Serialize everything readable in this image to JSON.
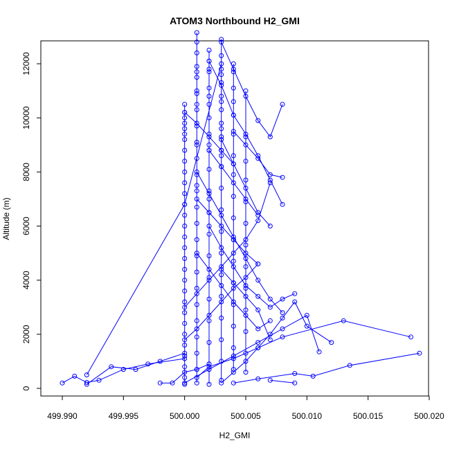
{
  "chart_data": {
    "type": "line",
    "title": "ATOM3 Northbound H2_GMI",
    "xlabel": "H2_GMI",
    "ylabel": "Altitude (m)",
    "xlim": [
      499.99,
      500.02
    ],
    "ylim": [
      0,
      13000
    ],
    "x_ticks": [
      499.99,
      499.995,
      500.0,
      500.005,
      500.01,
      500.015,
      500.02
    ],
    "x_tick_labels": [
      "499.990",
      "499.995",
      "500.000",
      "500.005",
      "500.010",
      "500.015",
      "500.020"
    ],
    "y_ticks": [
      0,
      2000,
      4000,
      6000,
      8000,
      10000,
      12000
    ],
    "y_tick_labels": [
      "0",
      "2000",
      "4000",
      "6000",
      "8000",
      "10000",
      "12000"
    ],
    "grid": false,
    "color": "#0000ff",
    "marker": "open-circle",
    "series": [
      {
        "x": [
          500.0,
          500.0,
          500.0,
          500.0,
          500.0,
          500.0,
          500.0,
          500.0,
          500.0,
          500.0,
          500.0,
          500.0,
          500.0,
          500.0,
          500.0,
          500.0,
          500.0,
          500.0,
          500.0,
          500.0,
          500.0,
          500.0,
          500.0,
          500.0,
          500.0,
          500.0,
          500.0,
          500.0,
          500.0,
          500.0
        ],
        "y": [
          150,
          400,
          800,
          1200,
          1600,
          2000,
          2400,
          2800,
          3200,
          3600,
          4000,
          4400,
          4800,
          5200,
          5600,
          6000,
          6400,
          6800,
          7200,
          7600,
          8000,
          8400,
          8800,
          9200,
          9600,
          10000,
          10500,
          10200,
          9800,
          9400
        ]
      },
      {
        "x": [
          500.001,
          500.001,
          500.001,
          500.001,
          500.001,
          500.001,
          500.001,
          500.001,
          500.001,
          500.001,
          500.001,
          500.001,
          500.001,
          500.001,
          500.001,
          500.001,
          500.001,
          500.001,
          500.001,
          500.001,
          500.001,
          500.001,
          500.001,
          500.001,
          500.001,
          500.001,
          500.001,
          500.001,
          500.001
        ],
        "y": [
          200,
          700,
          1300,
          1900,
          2500,
          3100,
          3700,
          4300,
          4900,
          5500,
          6100,
          6700,
          7300,
          7900,
          8500,
          9100,
          9700,
          10300,
          10900,
          11500,
          11900,
          12400,
          12800,
          13150,
          11700,
          11000,
          10500,
          9000,
          7500
        ]
      },
      {
        "x": [
          500.002,
          500.002,
          500.002,
          500.002,
          500.002,
          500.002,
          500.002,
          500.002,
          500.002,
          500.002,
          500.002,
          500.002,
          500.002,
          500.002,
          500.002,
          500.002,
          500.002,
          500.002,
          500.002,
          500.002,
          500.002,
          500.002,
          500.002
        ],
        "y": [
          150,
          900,
          1700,
          2500,
          3300,
          4100,
          4900,
          5700,
          6500,
          7300,
          8100,
          8800,
          9400,
          10000,
          10500,
          11100,
          11700,
          12100,
          12500,
          11800,
          10800,
          9000,
          7000
        ]
      },
      {
        "x": [
          500.003,
          500.003,
          500.003,
          500.003,
          500.003,
          500.003,
          500.003,
          500.003,
          500.003,
          500.003,
          500.003,
          500.003,
          500.003,
          500.003,
          500.003,
          500.003,
          500.003,
          500.003,
          500.003,
          500.003,
          500.003,
          500.003,
          500.003,
          500.003
        ],
        "y": [
          300,
          1000,
          1800,
          2600,
          3400,
          4200,
          5000,
          5800,
          6600,
          7400,
          8200,
          8800,
          9300,
          9800,
          10300,
          10800,
          11300,
          11800,
          12300,
          12900,
          11600,
          10600,
          9600,
          8600
        ]
      },
      {
        "x": [
          500.004,
          500.004,
          500.004,
          500.004,
          500.004,
          500.004,
          500.004,
          500.004,
          500.004,
          500.004,
          500.004,
          500.004,
          500.004,
          500.004,
          500.004,
          500.004,
          500.004
        ],
        "y": [
          700,
          1500,
          2300,
          3100,
          3900,
          4700,
          5500,
          6300,
          7100,
          7900,
          8600,
          9400,
          10100,
          10600,
          11100,
          11700,
          12000
        ]
      },
      {
        "x": [
          500.005,
          500.005,
          500.005,
          500.005,
          500.005,
          500.005,
          500.005,
          500.005,
          500.005,
          500.005,
          500.005,
          500.005,
          500.005
        ],
        "y": [
          600,
          1300,
          2100,
          2900,
          3700,
          4500,
          5300,
          6100,
          6900,
          7700,
          8400,
          9300,
          11000
        ]
      },
      {
        "x": [
          500.003,
          500.004,
          500.005,
          500.006,
          500.007,
          500.008,
          500.009,
          500.01,
          500.012
        ],
        "y": [
          200,
          600,
          1000,
          1500,
          2000,
          2600,
          3200,
          2300,
          1700
        ]
      },
      {
        "x": [
          500.002,
          500.003,
          500.004,
          500.005,
          500.006,
          500.007,
          500.008
        ],
        "y": [
          12100,
          11200,
          10100,
          9400,
          8600,
          7700,
          6800
        ]
      },
      {
        "x": [
          500.003,
          500.004,
          500.005,
          500.006,
          500.007,
          500.008
        ],
        "y": [
          12800,
          11800,
          10800,
          9900,
          9300,
          10500
        ]
      },
      {
        "x": [
          500.001,
          500.002,
          500.004,
          500.006,
          500.008,
          500.013,
          500.0185
        ],
        "y": [
          400,
          800,
          1100,
          1500,
          1900,
          2500,
          1900
        ]
      },
      {
        "x": [
          500.004,
          500.006,
          500.009,
          500.0105,
          500.0135,
          500.0192
        ],
        "y": [
          200,
          350,
          550,
          450,
          850,
          1300
        ]
      },
      {
        "x": [
          500.007,
          500.009
        ],
        "y": [
          300,
          200
        ]
      },
      {
        "x": [
          500.0,
          500.002,
          500.004,
          500.006,
          500.008,
          500.01,
          500.011
        ],
        "y": [
          200,
          700,
          1200,
          1700,
          2200,
          2700,
          1350
        ]
      },
      {
        "x": [
          499.99,
          499.991,
          499.992,
          499.993,
          499.995,
          499.997,
          500.0
        ],
        "y": [
          200,
          450,
          220,
          300,
          700,
          900,
          1100
        ]
      },
      {
        "x": [
          499.992,
          499.994,
          499.996,
          499.998,
          500.0
        ],
        "y": [
          150,
          800,
          700,
          1000,
          1300
        ]
      },
      {
        "x": [
          499.998,
          499.999,
          500.0,
          500.001,
          500.002
        ],
        "y": [
          200,
          200,
          600,
          700,
          900
        ]
      },
      {
        "x": [
          499.992,
          500.0,
          500.003
        ],
        "y": [
          500,
          6800,
          12000
        ]
      },
      {
        "x": [
          500.0,
          500.001,
          500.002,
          500.003,
          500.004,
          500.005,
          500.006,
          500.007
        ],
        "y": [
          3000,
          3500,
          4000,
          4500,
          5000,
          5500,
          6200,
          7600
        ]
      },
      {
        "x": [
          500.001,
          500.002,
          500.003,
          500.004,
          500.005,
          500.006,
          500.007,
          500.008
        ],
        "y": [
          8000,
          7200,
          6400,
          5600,
          4800,
          4000,
          3300,
          2800
        ]
      },
      {
        "x": [
          500.002,
          500.003,
          500.004,
          500.005,
          500.006,
          500.007,
          500.008,
          500.009
        ],
        "y": [
          6000,
          5200,
          4500,
          3800,
          3400,
          3000,
          3300,
          3500
        ]
      },
      {
        "x": [
          500.003,
          500.004,
          500.005,
          500.006,
          500.007
        ],
        "y": [
          9200,
          8300,
          7400,
          6500,
          6000
        ]
      },
      {
        "x": [
          500.004,
          500.005,
          500.006,
          500.007,
          500.008
        ],
        "y": [
          9500,
          9000,
          8500,
          7900,
          7800
        ]
      },
      {
        "x": [
          500.0,
          500.001,
          500.002,
          500.003,
          500.004,
          500.005,
          500.006
        ],
        "y": [
          1800,
          2200,
          2700,
          3200,
          3700,
          4100,
          4600
        ]
      },
      {
        "x": [
          500.001,
          500.002,
          500.003,
          500.004,
          500.005,
          500.006,
          500.007
        ],
        "y": [
          5000,
          4400,
          3800,
          3200,
          2700,
          2200,
          2500
        ]
      },
      {
        "x": [
          500.002,
          500.003,
          500.004,
          500.005,
          500.006
        ],
        "y": [
          8800,
          8200,
          7600,
          7000,
          6400
        ]
      },
      {
        "x": [
          500.0,
          500.001,
          500.002,
          500.003,
          500.004
        ],
        "y": [
          10200,
          9800,
          9300,
          8800,
          8300
        ]
      },
      {
        "x": [
          500.003,
          500.004,
          500.005,
          500.006,
          500.007
        ],
        "y": [
          4400,
          3900,
          3400,
          2900,
          1800
        ]
      },
      {
        "x": [
          500.001,
          500.002,
          500.003,
          500.004,
          500.005,
          500.006
        ],
        "y": [
          7000,
          6500,
          6000,
          5500,
          5000,
          4600
        ]
      }
    ]
  }
}
